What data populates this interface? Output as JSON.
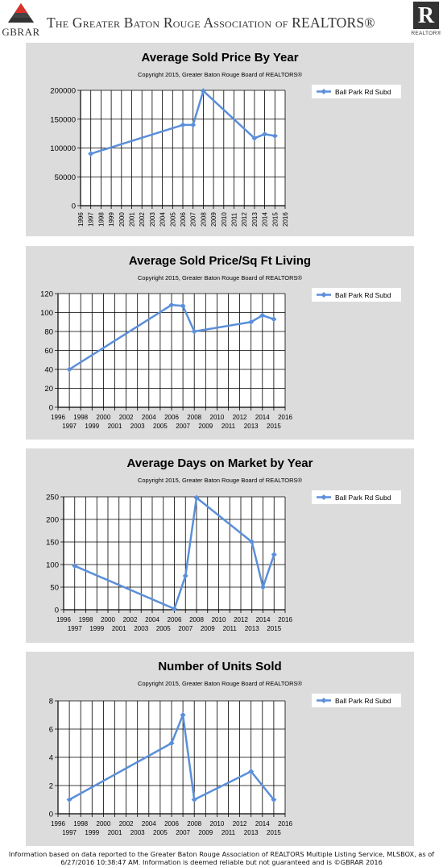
{
  "header": {
    "left_logo_text": "GBRAR",
    "title": "The Greater Baton Rouge Association of REALTORS®",
    "right_logo_letter": "R",
    "right_logo_caption": "REALTOR®"
  },
  "footer": {
    "line1": "Information based on data reported to the Greater Baton Rouge Association of REALTORS Multiple Listing Service, MLSBOX, as of",
    "line2": "6/27/2016 10:38:47 AM. Information is deemed reliable but not guaranteed and is ©GBRAR 2016"
  },
  "colors": {
    "line": "#5b8fd9",
    "panel": "#dcdcdc",
    "grid": "#000000"
  },
  "chart_data": [
    {
      "type": "line",
      "title": "Average Sold Price By Year",
      "subtitle": "Copyright 2015, Greater Baton Rouge Board of REALTORS®",
      "xlabel": "",
      "ylabel": "",
      "xlim": [
        1996,
        2016
      ],
      "ylim": [
        0,
        200000
      ],
      "yticks": [
        0,
        50000,
        100000,
        150000,
        200000
      ],
      "xtick_style": "vertical",
      "xticks": [
        1996,
        1997,
        1998,
        1999,
        2000,
        2001,
        2002,
        2003,
        2004,
        2005,
        2006,
        2007,
        2008,
        2009,
        2010,
        2011,
        2012,
        2013,
        2014,
        2015,
        2016
      ],
      "grid": true,
      "legend": "top-right",
      "series": [
        {
          "name": "Ball Park Rd Subd",
          "x": [
            1997,
            2006,
            2007,
            2008,
            2013,
            2014,
            2015
          ],
          "y": [
            90000,
            140000,
            140000,
            199000,
            117000,
            124000,
            121000
          ]
        }
      ]
    },
    {
      "type": "line",
      "title": "Average Sold Price/Sq Ft Living",
      "subtitle": "Copyright 2015, Greater Baton Rouge Board of REALTORS®",
      "xlabel": "",
      "ylabel": "",
      "xlim": [
        1996,
        2016
      ],
      "ylim": [
        0,
        120
      ],
      "yticks": [
        0,
        20,
        40,
        60,
        80,
        100,
        120
      ],
      "xtick_style": "staggered",
      "xticks": [
        1996,
        1997,
        1998,
        1999,
        2000,
        2001,
        2002,
        2003,
        2004,
        2005,
        2006,
        2007,
        2008,
        2009,
        2010,
        2011,
        2012,
        2013,
        2014,
        2015,
        2016
      ],
      "grid": true,
      "legend": "top-right",
      "series": [
        {
          "name": "Ball Park Rd Subd",
          "x": [
            1997,
            2006,
            2007,
            2008,
            2013,
            2014,
            2015
          ],
          "y": [
            40,
            108,
            107,
            80,
            90,
            97,
            93
          ]
        }
      ]
    },
    {
      "type": "line",
      "title": "Average Days on Market by Year",
      "subtitle": "Copyright 2015, Greater Baton Rouge Board of REALTORS®",
      "xlabel": "",
      "ylabel": "",
      "xlim": [
        1996,
        2016
      ],
      "ylim": [
        0,
        250
      ],
      "yticks": [
        0,
        50,
        100,
        150,
        200,
        250
      ],
      "xtick_style": "staggered",
      "xticks": [
        1996,
        1997,
        1998,
        1999,
        2000,
        2001,
        2002,
        2003,
        2004,
        2005,
        2006,
        2007,
        2008,
        2009,
        2010,
        2011,
        2012,
        2013,
        2014,
        2015,
        2016
      ],
      "grid": true,
      "legend": "top-right",
      "series": [
        {
          "name": "Ball Park Rd Subd",
          "x": [
            1997,
            2006,
            2007,
            2008,
            2013,
            2014,
            2015
          ],
          "y": [
            97,
            2,
            75,
            248,
            150,
            50,
            122
          ]
        }
      ]
    },
    {
      "type": "line",
      "title": "Number of Units Sold",
      "subtitle": "Copyright 2015, Greater Baton Rouge Board of REALTORS®",
      "xlabel": "",
      "ylabel": "",
      "xlim": [
        1996,
        2016
      ],
      "ylim": [
        0,
        8
      ],
      "yticks": [
        0,
        2,
        4,
        6,
        8
      ],
      "xtick_style": "staggered",
      "xticks": [
        1996,
        1997,
        1998,
        1999,
        2000,
        2001,
        2002,
        2003,
        2004,
        2005,
        2006,
        2007,
        2008,
        2009,
        2010,
        2011,
        2012,
        2013,
        2014,
        2015,
        2016
      ],
      "grid": true,
      "legend": "top-right",
      "series": [
        {
          "name": "Ball Park Rd Subd",
          "x": [
            1997,
            2006,
            2007,
            2008,
            2013,
            2015
          ],
          "y": [
            1,
            5,
            7,
            1,
            3,
            1
          ]
        }
      ]
    }
  ]
}
